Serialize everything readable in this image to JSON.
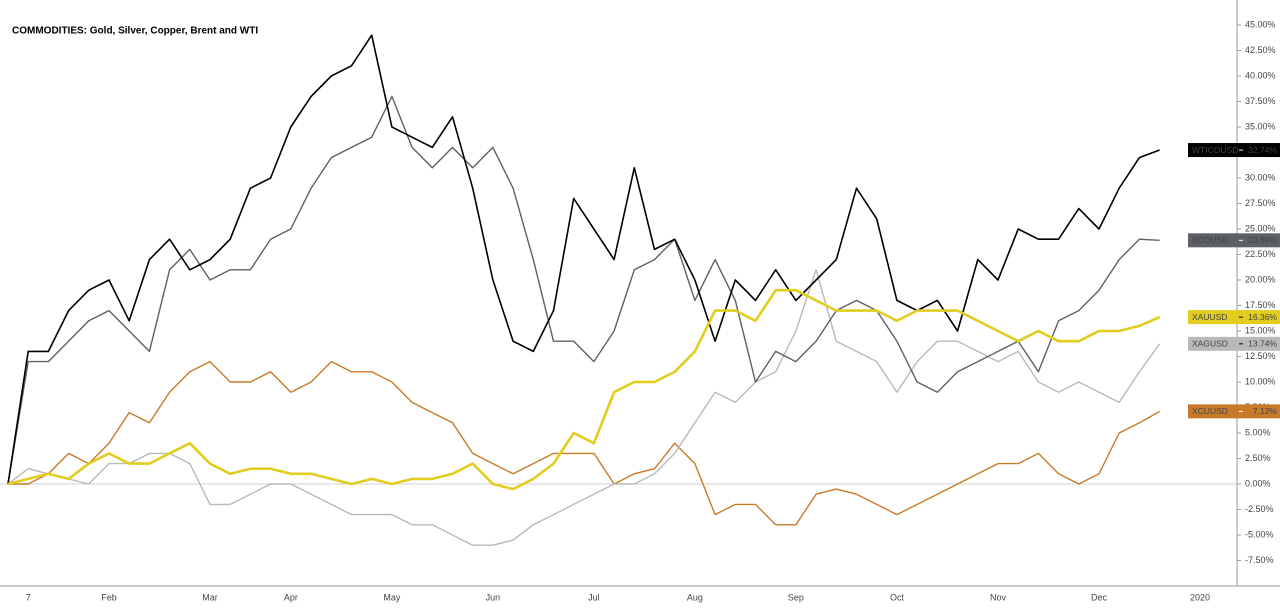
{
  "chart_data": {
    "type": "line",
    "title": "COMMODITIES: Gold, Silver, Copper, Brent and WTI",
    "categories": [
      null,
      "7",
      null,
      null,
      null,
      "Feb",
      null,
      null,
      null,
      null,
      "Mar",
      null,
      null,
      null,
      "Apr",
      null,
      null,
      null,
      null,
      "May",
      null,
      null,
      null,
      null,
      "Jun",
      null,
      null,
      null,
      null,
      "Jul",
      null,
      null,
      null,
      null,
      "Aug",
      null,
      null,
      null,
      null,
      "Sep",
      null,
      null,
      null,
      null,
      "Oct",
      null,
      null,
      null,
      null,
      "Nov",
      null,
      null,
      null,
      null,
      "Dec",
      null,
      null,
      null,
      null,
      "2020"
    ],
    "ylim": [
      -10,
      47.45
    ],
    "yticks": [
      {
        "value": -7.5,
        "label": "-7.50%"
      },
      {
        "value": -5,
        "label": "-5.00%"
      },
      {
        "value": -2.5,
        "label": "-2.50%"
      },
      {
        "value": 0,
        "label": "0.00%"
      },
      {
        "value": 2.5,
        "label": "2.50%"
      },
      {
        "value": 5,
        "label": "5.00%"
      },
      {
        "value": 7.5,
        "label": "7.50%"
      },
      {
        "value": 10,
        "label": "10.00%"
      },
      {
        "value": 12.5,
        "label": "12.50%"
      },
      {
        "value": 15,
        "label": "15.00%"
      },
      {
        "value": 17.5,
        "label": "17.50%"
      },
      {
        "value": 20,
        "label": "20.00%"
      },
      {
        "value": 22.5,
        "label": "22.50%"
      },
      {
        "value": 25,
        "label": "25.00%"
      },
      {
        "value": 27.5,
        "label": "27.50%"
      },
      {
        "value": 30,
        "label": "30.00%"
      },
      {
        "value": 32.5,
        "label": "32.50%"
      },
      {
        "value": 35,
        "label": "35.00%"
      },
      {
        "value": 37.5,
        "label": "37.50%"
      },
      {
        "value": 40,
        "label": "40.00%"
      },
      {
        "value": 42.5,
        "label": "42.50%"
      },
      {
        "value": 45,
        "label": "45.00%"
      }
    ],
    "zero_line": true,
    "series": [
      {
        "name": "WTICOUSD",
        "color": "#000000",
        "text_color": "#ffffff",
        "width": 1.6,
        "values": [
          0,
          13,
          13,
          17,
          19,
          20,
          16,
          22,
          24,
          21,
          22,
          24,
          29,
          30,
          35,
          38,
          40,
          41,
          44,
          35,
          34,
          33,
          36,
          29,
          20,
          14,
          13,
          17,
          28,
          25,
          22,
          31,
          23,
          24,
          20,
          14,
          20,
          18,
          21,
          18,
          20,
          22,
          29,
          26,
          18,
          17,
          18,
          15,
          22,
          20,
          25,
          24,
          24,
          27,
          25,
          29,
          32,
          32.74,
          null,
          null
        ],
        "value_labels": [
          null,
          null,
          null,
          null,
          null,
          null,
          null,
          null,
          null,
          null,
          null,
          null,
          null,
          null,
          null,
          null,
          null,
          null,
          null,
          null,
          null,
          null,
          null,
          null,
          null,
          null,
          null,
          null,
          null,
          null,
          null,
          null,
          null,
          null,
          null,
          null,
          null,
          null,
          null,
          null,
          null,
          null,
          null,
          null,
          null,
          null,
          null,
          null,
          null,
          null,
          null,
          null,
          null,
          null,
          null,
          null,
          null,
          "32.74%",
          null,
          null
        ]
      },
      {
        "name": "BCOUSD",
        "color": "#5d6066",
        "text_color": "#ffffff",
        "width": 1.4,
        "values": [
          0,
          12,
          12,
          14,
          16,
          17,
          15,
          13,
          21,
          23,
          20,
          21,
          21,
          24,
          25,
          29,
          32,
          33,
          34,
          38,
          33,
          31,
          33,
          31,
          33,
          29,
          22,
          14,
          14,
          12,
          15,
          21,
          22,
          24,
          18,
          22,
          18,
          10,
          13,
          12,
          14,
          17,
          18,
          17,
          14,
          10,
          9,
          11,
          12,
          13,
          14,
          11,
          16,
          17,
          19,
          22,
          24,
          23.89,
          null,
          null
        ],
        "value_labels": [
          null,
          null,
          null,
          null,
          null,
          null,
          null,
          null,
          null,
          null,
          null,
          null,
          null,
          null,
          null,
          null,
          null,
          null,
          null,
          null,
          null,
          null,
          null,
          null,
          null,
          null,
          null,
          null,
          null,
          null,
          null,
          null,
          null,
          null,
          null,
          null,
          null,
          null,
          null,
          null,
          null,
          null,
          null,
          null,
          null,
          null,
          null,
          null,
          null,
          null,
          null,
          null,
          null,
          null,
          null,
          null,
          null,
          "23.89%",
          null,
          null
        ]
      },
      {
        "name": "XAUUSD",
        "color": "#e2cc1e",
        "text_color": "#000000",
        "width": 2.6,
        "values": [
          0,
          0.5,
          1,
          0.5,
          2,
          3,
          2,
          2,
          3,
          4,
          2,
          1,
          1.5,
          1.5,
          1,
          1,
          0.5,
          0,
          0.5,
          0,
          0.5,
          0.5,
          1,
          2,
          0,
          -0.5,
          0.5,
          2,
          5,
          4,
          9,
          10,
          10,
          11,
          13,
          17,
          17,
          16,
          19,
          19,
          18,
          17,
          17,
          17,
          16,
          17,
          17,
          17,
          16,
          15,
          14,
          15,
          14,
          14,
          15,
          15,
          15.5,
          16.36,
          null,
          null
        ],
        "value_labels": [
          null,
          null,
          null,
          null,
          null,
          null,
          null,
          null,
          null,
          null,
          null,
          null,
          null,
          null,
          null,
          null,
          null,
          null,
          null,
          null,
          null,
          null,
          null,
          null,
          null,
          null,
          null,
          null,
          null,
          null,
          null,
          null,
          null,
          null,
          null,
          null,
          null,
          null,
          null,
          null,
          null,
          null,
          null,
          null,
          null,
          null,
          null,
          null,
          null,
          null,
          null,
          null,
          null,
          null,
          null,
          null,
          null,
          "16.36%",
          null,
          null
        ]
      },
      {
        "name": "XAGUSD",
        "color": "#b9b9b9",
        "text_color": "#000000",
        "width": 1.4,
        "values": [
          0,
          1.5,
          1,
          0.5,
          0,
          2,
          2,
          3,
          3,
          2,
          -2,
          -2,
          -1,
          0,
          0,
          -1,
          -2,
          -3,
          -3,
          -3,
          -4,
          -4,
          -5,
          -6,
          -6,
          -5.5,
          -4,
          -3,
          -2,
          -1,
          0,
          0,
          1,
          3,
          6,
          9,
          8,
          10,
          11,
          15,
          21,
          14,
          13,
          12,
          9,
          12,
          14,
          14,
          13,
          12,
          13,
          10,
          9,
          10,
          9,
          8,
          11,
          13.74,
          null,
          null
        ],
        "value_labels": [
          null,
          null,
          null,
          null,
          null,
          null,
          null,
          null,
          null,
          null,
          null,
          null,
          null,
          null,
          null,
          null,
          null,
          null,
          null,
          null,
          null,
          null,
          null,
          null,
          null,
          null,
          null,
          null,
          null,
          null,
          null,
          null,
          null,
          null,
          null,
          null,
          null,
          null,
          null,
          null,
          null,
          null,
          null,
          null,
          null,
          null,
          null,
          null,
          null,
          null,
          null,
          null,
          null,
          null,
          null,
          null,
          null,
          "13.74%",
          null,
          null
        ]
      },
      {
        "name": "XCUUSD",
        "color": "#c97a28",
        "text_color": "#ffffff",
        "width": 1.4,
        "values": [
          0,
          0,
          1,
          3,
          2,
          4,
          7,
          6,
          9,
          11,
          12,
          10,
          10,
          11,
          9,
          10,
          12,
          11,
          11,
          10,
          8,
          7,
          6,
          3,
          2,
          1,
          2,
          3,
          3,
          3,
          0,
          1,
          1.5,
          4,
          2,
          -3,
          -2,
          -2,
          -4,
          -4,
          -1,
          -0.5,
          -1,
          -2,
          -3,
          -2,
          -1,
          0,
          1,
          2,
          2,
          3,
          1,
          0,
          1,
          5,
          6,
          7.12,
          null,
          null
        ],
        "value_labels": [
          null,
          null,
          null,
          null,
          null,
          null,
          null,
          null,
          null,
          null,
          null,
          null,
          null,
          null,
          null,
          null,
          null,
          null,
          null,
          null,
          null,
          null,
          null,
          null,
          null,
          null,
          null,
          null,
          null,
          null,
          null,
          null,
          null,
          null,
          null,
          null,
          null,
          null,
          null,
          null,
          null,
          null,
          null,
          null,
          null,
          null,
          null,
          null,
          null,
          null,
          null,
          null,
          null,
          null,
          null,
          null,
          null,
          "7.12%",
          null,
          null
        ]
      }
    ]
  }
}
